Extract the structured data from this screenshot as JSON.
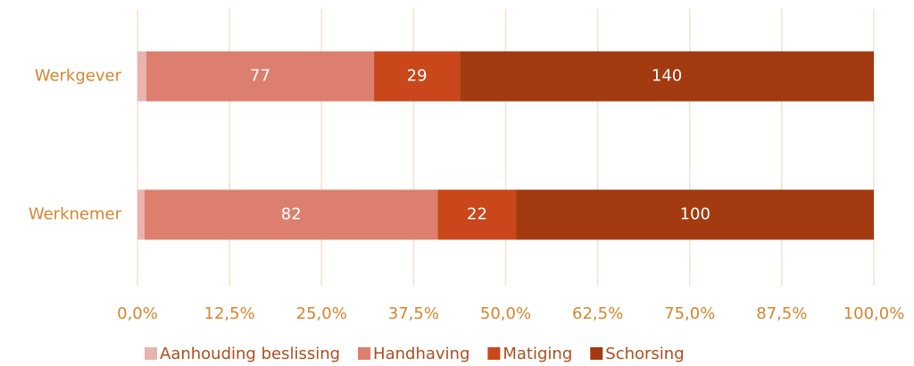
{
  "chart_data": {
    "type": "stacked-bar-100",
    "categories": [
      "Werkgever",
      "Werknemer"
    ],
    "series": [
      {
        "name": "Aanhouding beslissing",
        "color": "#e8b3ae",
        "values": [
          3,
          2
        ]
      },
      {
        "name": "Handhaving",
        "color": "#dc7f6e",
        "values": [
          77,
          82
        ]
      },
      {
        "name": "Matiging",
        "color": "#c9471a",
        "values": [
          29,
          22
        ]
      },
      {
        "name": "Schorsing",
        "color": "#a33a10",
        "values": [
          140,
          100
        ]
      }
    ],
    "xlim": [
      0,
      100
    ],
    "xticks": [
      {
        "value": 0,
        "label": "0,0%"
      },
      {
        "value": 12.5,
        "label": "12,5%"
      },
      {
        "value": 25,
        "label": "25,0%"
      },
      {
        "value": 37.5,
        "label": "37,5%"
      },
      {
        "value": 50,
        "label": "50,0%"
      },
      {
        "value": 62.5,
        "label": "62,5%"
      },
      {
        "value": 75,
        "label": "75,0%"
      },
      {
        "value": 87.5,
        "label": "87,5%"
      },
      {
        "value": 100,
        "label": "100,0%"
      }
    ],
    "grid": true,
    "legend": "bottom"
  }
}
